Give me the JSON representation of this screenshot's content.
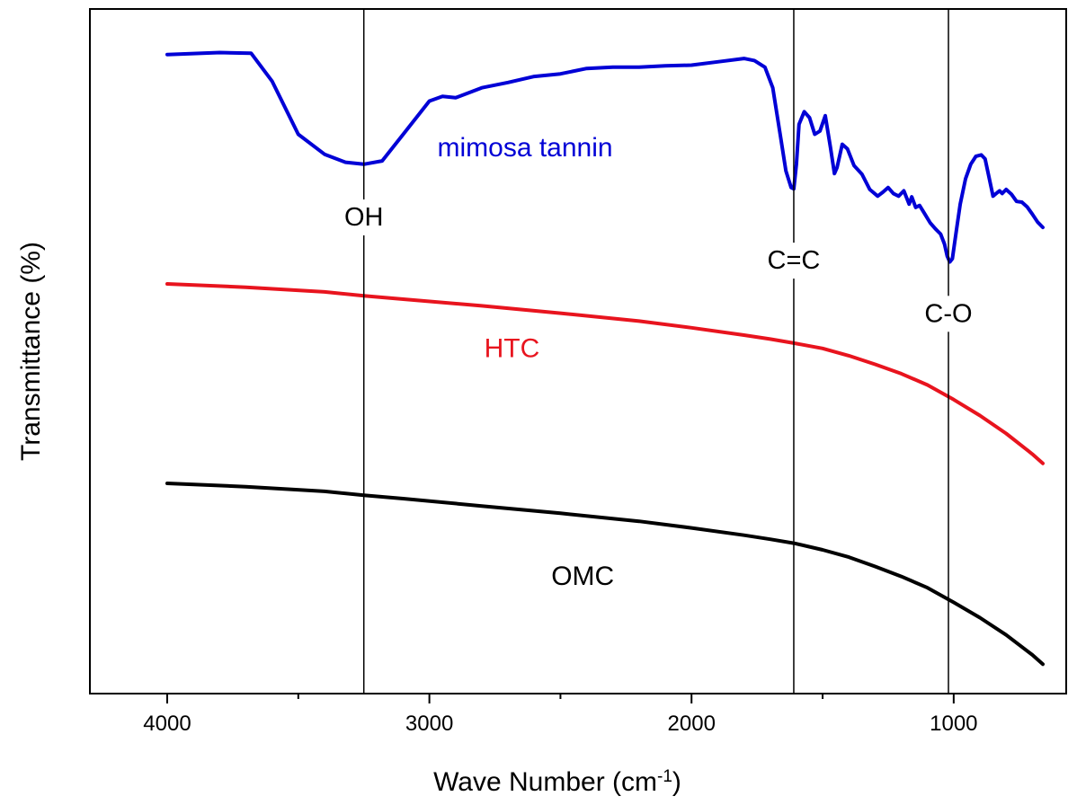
{
  "chart_data": {
    "type": "line",
    "xlabel": "Wave Number (cm",
    "xlabel_sup": "-1",
    "xlabel_close": ")",
    "ylabel": "Transmittance (%)",
    "xlim": [
      4300,
      600
    ],
    "x_reversed": true,
    "y_ticks_shown": false,
    "grid": false,
    "xticks": [
      {
        "value": 4000,
        "label": "4000"
      },
      {
        "value": 3000,
        "label": "3000"
      },
      {
        "value": 2000,
        "label": "2000"
      },
      {
        "value": 1000,
        "label": "1000"
      }
    ],
    "minor_xticks": [
      3500,
      2500,
      1500
    ],
    "vlines": [
      {
        "x": 3250,
        "label": "OH"
      },
      {
        "x": 1610,
        "label": "C=C"
      },
      {
        "x": 1020,
        "label": "C-O"
      }
    ],
    "series": [
      {
        "name": "mimosa tannin",
        "color": "#0000d6",
        "x": [
          4000,
          3800,
          3680,
          3600,
          3500,
          3400,
          3320,
          3250,
          3180,
          3100,
          3000,
          2950,
          2900,
          2800,
          2700,
          2600,
          2500,
          2400,
          2300,
          2200,
          2100,
          2000,
          1900,
          1800,
          1760,
          1720,
          1690,
          1660,
          1640,
          1620,
          1610,
          1600,
          1590,
          1570,
          1550,
          1530,
          1510,
          1490,
          1470,
          1455,
          1445,
          1425,
          1405,
          1380,
          1350,
          1320,
          1290,
          1270,
          1250,
          1230,
          1210,
          1190,
          1170,
          1160,
          1145,
          1130,
          1110,
          1090,
          1070,
          1050,
          1035,
          1025,
          1015,
          1005,
          990,
          975,
          955,
          935,
          915,
          895,
          880,
          865,
          850,
          835,
          825,
          815,
          800,
          780,
          760,
          740,
          720,
          700,
          680,
          660
        ],
        "y": [
          94.5,
          94.8,
          94.7,
          90.5,
          82.5,
          79.5,
          78.3,
          78.0,
          78.5,
          82.5,
          87.5,
          88.2,
          88.0,
          89.5,
          90.3,
          91.2,
          91.6,
          92.4,
          92.6,
          92.6,
          92.8,
          92.9,
          93.4,
          93.9,
          93.6,
          92.6,
          89.5,
          82.0,
          77.0,
          74.5,
          74.3,
          78.0,
          84.0,
          85.9,
          85.0,
          82.5,
          83.0,
          85.3,
          80.5,
          76.6,
          77.5,
          81.0,
          80.3,
          77.8,
          76.5,
          74.2,
          73.2,
          73.8,
          74.5,
          73.6,
          73.2,
          74.0,
          72.0,
          73.1,
          71.5,
          71.8,
          70.5,
          69.2,
          68.3,
          67.5,
          66.0,
          64.2,
          63.3,
          63.8,
          68.0,
          72.0,
          75.8,
          78.0,
          79.2,
          79.4,
          78.8,
          76.0,
          73.2,
          73.7,
          74.0,
          73.6,
          74.2,
          73.5,
          72.4,
          72.3,
          71.6,
          70.5,
          69.3,
          68.5
        ]
      },
      {
        "name": "HTC",
        "color": "#e8141e",
        "x": [
          4000,
          3700,
          3400,
          3250,
          3100,
          2800,
          2500,
          2200,
          2000,
          1800,
          1700,
          1610,
          1500,
          1400,
          1300,
          1200,
          1100,
          1000,
          900,
          800,
          700,
          660
        ],
        "y": [
          60.0,
          59.5,
          58.8,
          58.2,
          57.7,
          56.7,
          55.6,
          54.4,
          53.4,
          52.3,
          51.7,
          51.1,
          50.3,
          49.2,
          47.9,
          46.5,
          44.8,
          42.6,
          40.2,
          37.5,
          34.4,
          33.0
        ]
      },
      {
        "name": "OMC",
        "color": "#000000",
        "x": [
          4000,
          3700,
          3400,
          3250,
          3100,
          2800,
          2500,
          2200,
          2000,
          1800,
          1700,
          1610,
          1500,
          1400,
          1300,
          1200,
          1100,
          1000,
          900,
          800,
          700,
          660
        ],
        "y": [
          30.0,
          29.5,
          28.8,
          28.2,
          27.7,
          26.6,
          25.5,
          24.3,
          23.3,
          22.2,
          21.6,
          21.0,
          20.0,
          18.9,
          17.5,
          16.0,
          14.3,
          12.1,
          9.8,
          7.2,
          4.2,
          2.8
        ]
      }
    ],
    "series_labels": [
      {
        "name": "mimosa tannin",
        "x": 2635,
        "y": 80.5
      },
      {
        "name": "HTC",
        "x": 2685,
        "y": 50.3
      },
      {
        "name": "OMC",
        "x": 2415,
        "y": 16.0
      }
    ],
    "vline_label_positions": [
      {
        "label": "OH",
        "x": 3250,
        "y": 70.0
      },
      {
        "label": "C=C",
        "x": 1610,
        "y": 63.5
      },
      {
        "label": "C-O",
        "x": 1020,
        "y": 55.5
      }
    ]
  }
}
